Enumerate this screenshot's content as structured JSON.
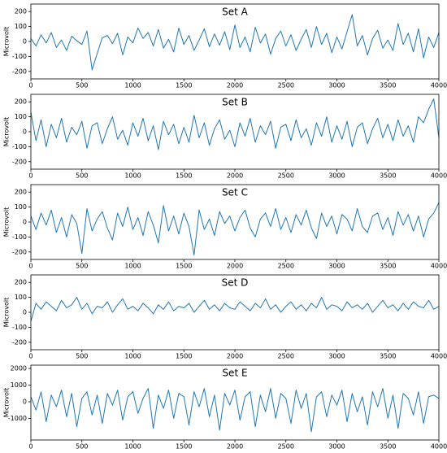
{
  "chart_data": [
    {
      "type": "line",
      "title": "Set A",
      "y_label": "Microvolt",
      "color": "#1f77b4",
      "xlim": [
        0,
        4000
      ],
      "xticks": [
        0,
        500,
        1000,
        1500,
        2000,
        2500,
        3000,
        3500,
        4000
      ],
      "ylim": [
        -250,
        250
      ],
      "yticks": [
        -200,
        -100,
        0,
        100,
        200
      ],
      "x": [
        0,
        50,
        100,
        150,
        200,
        250,
        300,
        350,
        400,
        450,
        500,
        550,
        600,
        650,
        700,
        750,
        800,
        850,
        900,
        950,
        1000,
        1050,
        1100,
        1150,
        1200,
        1250,
        1300,
        1350,
        1400,
        1450,
        1500,
        1550,
        1600,
        1650,
        1700,
        1750,
        1800,
        1850,
        1900,
        1950,
        2000,
        2050,
        2100,
        2150,
        2200,
        2250,
        2300,
        2350,
        2400,
        2450,
        2500,
        2550,
        2600,
        2650,
        2700,
        2750,
        2800,
        2850,
        2900,
        2950,
        3000,
        3050,
        3100,
        3150,
        3200,
        3250,
        3300,
        3350,
        3400,
        3450,
        3500,
        3550,
        3600,
        3650,
        3700,
        3750,
        3800,
        3850,
        3900,
        3950,
        4000
      ],
      "values": [
        20,
        -30,
        45,
        -10,
        60,
        -40,
        10,
        -60,
        35,
        5,
        -20,
        70,
        -190,
        -80,
        25,
        40,
        -15,
        55,
        -90,
        30,
        -10,
        90,
        20,
        60,
        -30,
        80,
        -45,
        15,
        -70,
        90,
        -20,
        40,
        -60,
        10,
        85,
        -35,
        50,
        -25,
        65,
        -55,
        110,
        -40,
        30,
        -70,
        95,
        -10,
        50,
        -85,
        20,
        70,
        -30,
        45,
        -60,
        15,
        80,
        -40,
        100,
        -20,
        55,
        -75,
        30,
        -50,
        65,
        180,
        -30,
        40,
        -90,
        20,
        75,
        -45,
        10,
        -60,
        120,
        -20,
        55,
        -70,
        85,
        -110,
        30,
        -40,
        60
      ]
    },
    {
      "type": "line",
      "title": "Set B",
      "y_label": "Microvolt",
      "color": "#1f77b4",
      "xlim": [
        0,
        4000
      ],
      "xticks": [
        0,
        500,
        1000,
        1500,
        2000,
        2500,
        3000,
        3500,
        4000
      ],
      "ylim": [
        -250,
        250
      ],
      "yticks": [
        -200,
        -100,
        0,
        100,
        200
      ],
      "x": [
        0,
        50,
        100,
        150,
        200,
        250,
        300,
        350,
        400,
        450,
        500,
        550,
        600,
        650,
        700,
        750,
        800,
        850,
        900,
        950,
        1000,
        1050,
        1100,
        1150,
        1200,
        1250,
        1300,
        1350,
        1400,
        1450,
        1500,
        1550,
        1600,
        1650,
        1700,
        1750,
        1800,
        1850,
        1900,
        1950,
        2000,
        2050,
        2100,
        2150,
        2200,
        2250,
        2300,
        2350,
        2400,
        2450,
        2500,
        2550,
        2600,
        2650,
        2700,
        2750,
        2800,
        2850,
        2900,
        2950,
        3000,
        3050,
        3100,
        3150,
        3200,
        3250,
        3300,
        3350,
        3400,
        3450,
        3500,
        3550,
        3600,
        3650,
        3700,
        3750,
        3800,
        3850,
        3900,
        3950,
        4000
      ],
      "values": [
        130,
        -60,
        80,
        -100,
        50,
        -40,
        90,
        -70,
        30,
        -20,
        70,
        -110,
        40,
        60,
        -80,
        20,
        100,
        -50,
        10,
        -90,
        60,
        -30,
        90,
        -60,
        40,
        -120,
        70,
        -20,
        50,
        -80,
        30,
        -70,
        110,
        -40,
        60,
        -90,
        20,
        80,
        -50,
        10,
        -100,
        60,
        -30,
        90,
        -70,
        40,
        -20,
        70,
        -110,
        30,
        50,
        -60,
        80,
        -40,
        20,
        -90,
        60,
        -30,
        100,
        -70,
        40,
        -50,
        70,
        -100,
        30,
        60,
        -80,
        20,
        90,
        -40,
        50,
        -60,
        80,
        -30,
        40,
        -70,
        100,
        60,
        150,
        220,
        -40
      ]
    },
    {
      "type": "line",
      "title": "Set C",
      "y_label": "Microvolt",
      "color": "#1f77b4",
      "xlim": [
        0,
        4000
      ],
      "xticks": [
        0,
        500,
        1000,
        1500,
        2000,
        2500,
        3000,
        3500,
        4000
      ],
      "ylim": [
        -250,
        250
      ],
      "yticks": [
        -200,
        -100,
        0,
        100,
        200
      ],
      "x": [
        0,
        50,
        100,
        150,
        200,
        250,
        300,
        350,
        400,
        450,
        500,
        550,
        600,
        650,
        700,
        750,
        800,
        850,
        900,
        950,
        1000,
        1050,
        1100,
        1150,
        1200,
        1250,
        1300,
        1350,
        1400,
        1450,
        1500,
        1550,
        1600,
        1650,
        1700,
        1750,
        1800,
        1850,
        1900,
        1950,
        2000,
        2050,
        2100,
        2150,
        2200,
        2250,
        2300,
        2350,
        2400,
        2450,
        2500,
        2550,
        2600,
        2650,
        2700,
        2750,
        2800,
        2850,
        2900,
        2950,
        3000,
        3050,
        3100,
        3150,
        3200,
        3250,
        3300,
        3350,
        3400,
        3450,
        3500,
        3550,
        3600,
        3650,
        3700,
        3750,
        3800,
        3850,
        3900,
        3950,
        4000
      ],
      "values": [
        40,
        -50,
        60,
        -20,
        80,
        -70,
        30,
        -100,
        50,
        -10,
        -210,
        90,
        -60,
        20,
        70,
        -40,
        -120,
        60,
        -30,
        100,
        -50,
        30,
        -90,
        70,
        -20,
        -140,
        110,
        -60,
        40,
        -80,
        60,
        -30,
        -220,
        80,
        -50,
        20,
        -90,
        70,
        -10,
        40,
        -60,
        30,
        80,
        -40,
        -100,
        20,
        60,
        -30,
        90,
        -50,
        30,
        -70,
        50,
        -20,
        80,
        -40,
        -110,
        60,
        -30,
        40,
        -80,
        50,
        20,
        -60,
        90,
        -30,
        -70,
        40,
        60,
        -50,
        30,
        -90,
        70,
        -20,
        50,
        -60,
        40,
        -100,
        20,
        60,
        130
      ]
    },
    {
      "type": "line",
      "title": "Set D",
      "y_label": "Microvolt",
      "color": "#1f77b4",
      "xlim": [
        0,
        4000
      ],
      "xticks": [
        0,
        500,
        1000,
        1500,
        2000,
        2500,
        3000,
        3500,
        4000
      ],
      "ylim": [
        -250,
        250
      ],
      "yticks": [
        -200,
        -100,
        0,
        100,
        200
      ],
      "x": [
        0,
        50,
        100,
        150,
        200,
        250,
        300,
        350,
        400,
        450,
        500,
        550,
        600,
        650,
        700,
        750,
        800,
        850,
        900,
        950,
        1000,
        1050,
        1100,
        1150,
        1200,
        1250,
        1300,
        1350,
        1400,
        1450,
        1500,
        1550,
        1600,
        1650,
        1700,
        1750,
        1800,
        1850,
        1900,
        1950,
        2000,
        2050,
        2100,
        2150,
        2200,
        2250,
        2300,
        2350,
        2400,
        2450,
        2500,
        2550,
        2600,
        2650,
        2700,
        2750,
        2800,
        2850,
        2900,
        2950,
        3000,
        3050,
        3100,
        3150,
        3200,
        3250,
        3300,
        3350,
        3400,
        3450,
        3500,
        3550,
        3600,
        3650,
        3700,
        3750,
        3800,
        3850,
        3900,
        3950,
        4000
      ],
      "values": [
        -60,
        60,
        20,
        70,
        40,
        10,
        80,
        30,
        50,
        100,
        20,
        60,
        -10,
        40,
        30,
        70,
        0,
        50,
        90,
        20,
        40,
        10,
        60,
        30,
        -10,
        50,
        20,
        70,
        10,
        40,
        30,
        60,
        0,
        40,
        80,
        20,
        50,
        10,
        60,
        30,
        20,
        70,
        40,
        10,
        60,
        30,
        90,
        20,
        50,
        0,
        40,
        70,
        20,
        50,
        10,
        60,
        30,
        100,
        20,
        50,
        40,
        10,
        70,
        30,
        50,
        20,
        60,
        0,
        40,
        80,
        30,
        50,
        10,
        60,
        20,
        70,
        40,
        30,
        80,
        20,
        40
      ]
    },
    {
      "type": "line",
      "title": "Set E",
      "y_label": "Microvolt",
      "color": "#1f77b4",
      "xlim": [
        0,
        4000
      ],
      "xticks": [
        0,
        500,
        1000,
        1500,
        2000,
        2500,
        3000,
        3500,
        4000
      ],
      "ylim": [
        -2300,
        2200
      ],
      "yticks": [
        -1000,
        0,
        1000,
        2000
      ],
      "x": [
        0,
        50,
        100,
        150,
        200,
        250,
        300,
        350,
        400,
        450,
        500,
        550,
        600,
        650,
        700,
        750,
        800,
        850,
        900,
        950,
        1000,
        1050,
        1100,
        1150,
        1200,
        1250,
        1300,
        1350,
        1400,
        1450,
        1500,
        1550,
        1600,
        1650,
        1700,
        1750,
        1800,
        1850,
        1900,
        1950,
        2000,
        2050,
        2100,
        2150,
        2200,
        2250,
        2300,
        2350,
        2400,
        2450,
        2500,
        2550,
        2600,
        2650,
        2700,
        2750,
        2800,
        2850,
        2900,
        2950,
        3000,
        3050,
        3100,
        3150,
        3200,
        3250,
        3300,
        3350,
        3400,
        3450,
        3500,
        3550,
        3600,
        3650,
        3700,
        3750,
        3800,
        3850,
        3900,
        3950,
        4000
      ],
      "values": [
        300,
        -500,
        600,
        -1200,
        400,
        -300,
        700,
        -900,
        500,
        -1500,
        200,
        600,
        -800,
        400,
        -1300,
        500,
        -200,
        700,
        -1100,
        300,
        600,
        -700,
        200,
        800,
        -1600,
        400,
        -400,
        700,
        -1000,
        500,
        300,
        -1400,
        600,
        -300,
        800,
        -900,
        400,
        -1700,
        500,
        -200,
        700,
        -1100,
        300,
        600,
        -1500,
        400,
        -600,
        800,
        -1000,
        500,
        200,
        -1300,
        700,
        -400,
        500,
        -1800,
        300,
        600,
        -900,
        400,
        -200,
        700,
        -1200,
        500,
        -600,
        300,
        -1400,
        600,
        -300,
        800,
        -1000,
        400,
        -1600,
        500,
        200,
        -800,
        600,
        -1300,
        300,
        400,
        200
      ]
    }
  ]
}
